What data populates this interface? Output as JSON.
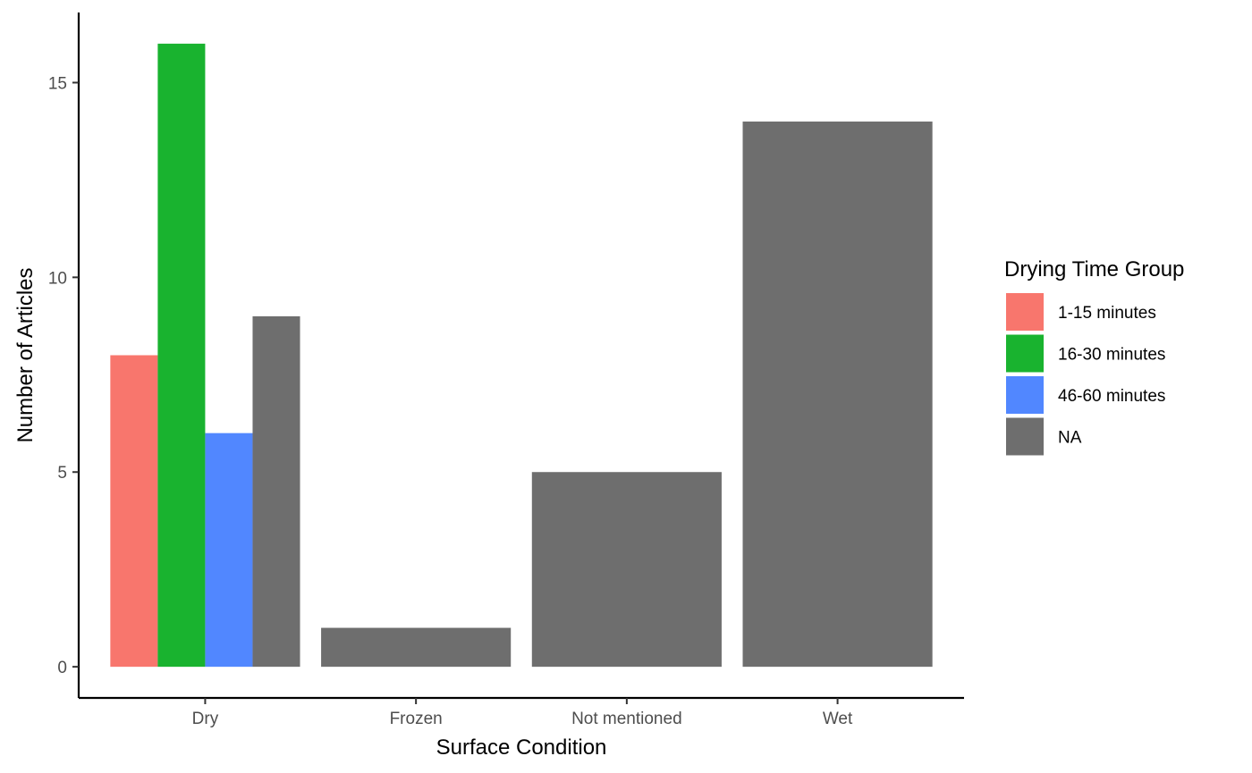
{
  "chart_data": {
    "type": "bar",
    "layout": "dodge",
    "title": "",
    "xlabel": "Surface Condition",
    "ylabel": "Number of Articles",
    "categories": [
      "Dry",
      "Frozen",
      "Not mentioned",
      "Wet"
    ],
    "ylim": [
      -0.8,
      16.8
    ],
    "yticks": [
      0,
      5,
      10,
      15
    ],
    "grid": false,
    "legend": {
      "title": "Drying Time Group",
      "position": "right"
    },
    "series": [
      {
        "name": "1-15 minutes",
        "color": "#F8766D",
        "values": [
          8,
          null,
          null,
          null
        ]
      },
      {
        "name": "16-30 minutes",
        "color": "#19B32F",
        "values": [
          16,
          null,
          null,
          null
        ]
      },
      {
        "name": "46-60 minutes",
        "color": "#5187FF",
        "values": [
          6,
          null,
          null,
          null
        ]
      },
      {
        "name": "NA",
        "color": "#6E6E6E",
        "values": [
          9,
          1,
          5,
          14
        ]
      }
    ]
  }
}
